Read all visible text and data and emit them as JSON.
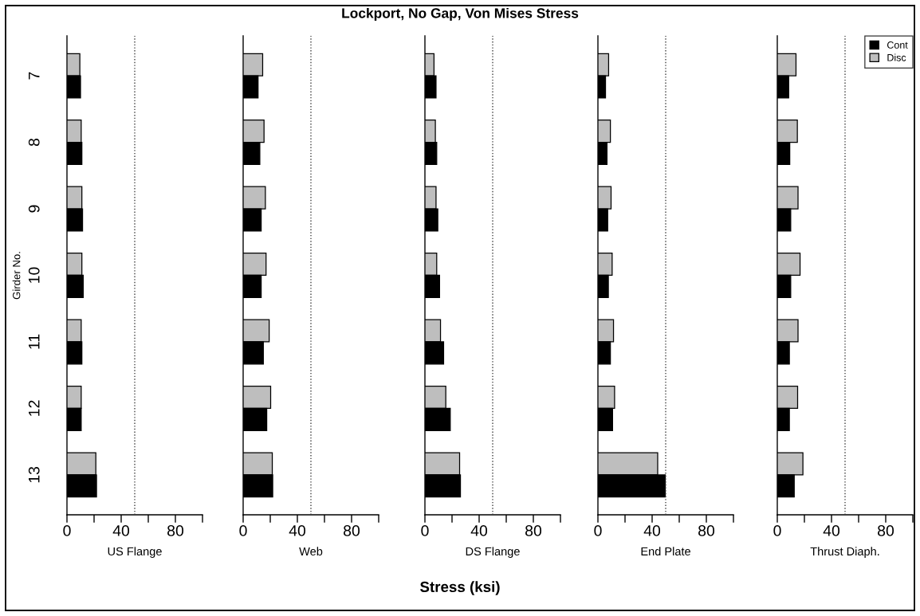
{
  "chart_data": [
    {
      "type": "bar",
      "orientation": "horizontal",
      "ylabel": "Girder No.",
      "xlabel": "US Flange",
      "categories": [
        "7",
        "8",
        "9",
        "10",
        "11",
        "12",
        "13"
      ],
      "series": [
        {
          "color": "#bebebe",
          "values": [
            9.5,
            10.5,
            11.0,
            11.0,
            10.5,
            10.5,
            21.3
          ]
        },
        {
          "color": "#000000",
          "values": [
            10.0,
            11.0,
            11.5,
            12.0,
            11.0,
            10.5,
            21.8
          ]
        }
      ],
      "xlim": [
        0,
        100
      ],
      "xticks": [
        0,
        {
          "value": 20,
          "label": null
        },
        40,
        {
          "value": 60,
          "label": null
        },
        80,
        {
          "value": 100,
          "label": null
        }
      ],
      "ref_lines": [
        {
          "axis": "x",
          "value": 50,
          "line_style": "dotted",
          "color": "#404040"
        }
      ]
    },
    {
      "type": "bar",
      "orientation": "horizontal",
      "xlabel": "Web",
      "tick_labels": "x",
      "categories": [
        "7",
        "8",
        "9",
        "10",
        "11",
        "12",
        "13"
      ],
      "series": [
        {
          "color": "#bebebe",
          "values": [
            14.4,
            15.4,
            16.4,
            16.9,
            19.2,
            20.3,
            21.5
          ]
        },
        {
          "color": "#000000",
          "values": [
            11.0,
            12.3,
            13.3,
            13.3,
            14.9,
            17.4,
            21.8
          ]
        }
      ],
      "xlim": [
        0,
        100
      ],
      "xticks": [
        0,
        {
          "value": 20,
          "label": null
        },
        40,
        {
          "value": 60,
          "label": null
        },
        80,
        {
          "value": 100,
          "label": null
        }
      ],
      "ref_lines": [
        {
          "axis": "x",
          "value": 50,
          "line_style": "dotted",
          "color": "#404040"
        }
      ]
    },
    {
      "type": "bar",
      "orientation": "horizontal",
      "title": "Lockport, No Gap, Von Mises Stress",
      "xlabel": "DS Flange",
      "annotations": [
        "Stress (ksi)"
      ],
      "tick_labels": "x",
      "categories": [
        "7",
        "8",
        "9",
        "10",
        "11",
        "12",
        "13"
      ],
      "series": [
        {
          "color": "#bebebe",
          "values": [
            6.7,
            7.7,
            8.2,
            8.7,
            11.5,
            15.4,
            25.6
          ]
        },
        {
          "color": "#000000",
          "values": [
            8.2,
            8.7,
            9.5,
            10.8,
            13.8,
            18.7,
            26.2
          ]
        }
      ],
      "xlim": [
        0,
        100
      ],
      "xticks": [
        0,
        {
          "value": 20,
          "label": null
        },
        40,
        {
          "value": 60,
          "label": null
        },
        80,
        {
          "value": 100,
          "label": null
        }
      ],
      "ref_lines": [
        {
          "axis": "x",
          "value": 50,
          "line_style": "dotted",
          "color": "#404040"
        }
      ]
    },
    {
      "type": "bar",
      "orientation": "horizontal",
      "xlabel": "End Plate",
      "tick_labels": "x",
      "categories": [
        "7",
        "8",
        "9",
        "10",
        "11",
        "12",
        "13"
      ],
      "series": [
        {
          "color": "#bebebe",
          "values": [
            7.9,
            9.2,
            9.7,
            10.5,
            11.5,
            12.3,
            44.1
          ]
        },
        {
          "color": "#000000",
          "values": [
            5.6,
            6.7,
            7.2,
            7.7,
            9.2,
            10.8,
            49.7
          ]
        }
      ],
      "xlim": [
        0,
        100
      ],
      "xticks": [
        0,
        {
          "value": 20,
          "label": null
        },
        40,
        {
          "value": 60,
          "label": null
        },
        80,
        {
          "value": 100,
          "label": null
        }
      ],
      "ref_lines": [
        {
          "axis": "x",
          "value": 50,
          "line_style": "dotted",
          "color": "#404040"
        }
      ]
    },
    {
      "type": "bar",
      "orientation": "horizontal",
      "xlabel": "Thrust Diaph.",
      "tick_labels": "x",
      "legend": "top right",
      "categories": [
        "7",
        "8",
        "9",
        "10",
        "11",
        "12",
        "13"
      ],
      "series": [
        {
          "name": "Disc",
          "color": "#bebebe",
          "values": [
            13.8,
            14.8,
            15.3,
            16.8,
            15.3,
            15.0,
            18.9
          ]
        },
        {
          "name": "Cont",
          "color": "#000000",
          "values": [
            8.4,
            9.2,
            9.9,
            9.9,
            8.9,
            8.9,
            12.5
          ]
        }
      ],
      "xlim": [
        0,
        100
      ],
      "xticks": [
        0,
        {
          "value": 20,
          "label": null
        },
        40,
        {
          "value": 60,
          "label": null
        },
        80,
        {
          "value": 100,
          "label": null
        }
      ],
      "ref_lines": [
        {
          "axis": "x",
          "value": 50,
          "line_style": "dotted",
          "color": "#404040"
        }
      ]
    }
  ]
}
